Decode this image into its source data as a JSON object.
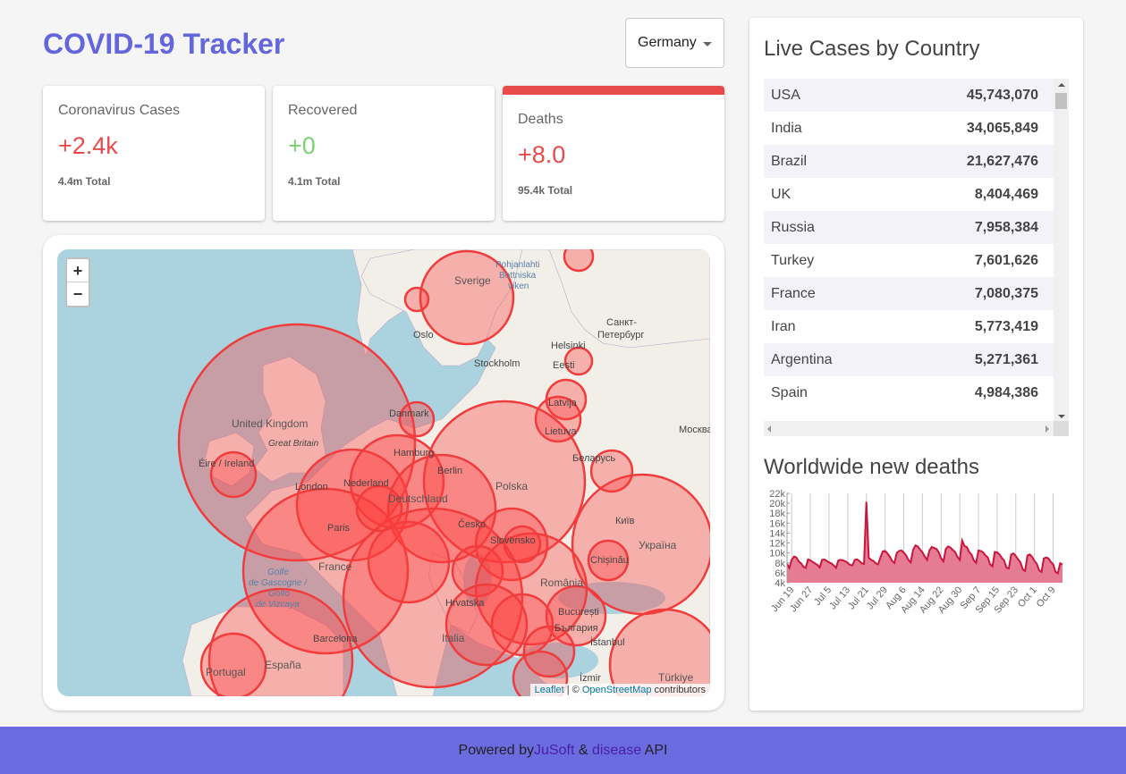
{
  "app": {
    "title": "COVID-19 Tracker"
  },
  "country_select": {
    "value": "Germany"
  },
  "cards": [
    {
      "label": "Coronavirus Cases",
      "value": "+2.4k",
      "total": "4.4m Total"
    },
    {
      "label": "Recovered",
      "value": "+0",
      "total": "4.1m Total"
    },
    {
      "label": "Deaths",
      "value": "+8.0",
      "total": "95.4k Total"
    }
  ],
  "map": {
    "zoom_in": "+",
    "zoom_out": "−",
    "attribution": {
      "leaflet": "Leaflet",
      "sep": " | © ",
      "osm": "OpenStreetMap",
      "suffix": " contributors"
    },
    "labels": {
      "sverige": "Sverige",
      "pohjanlahti": "Pohjanlahti",
      "bottniska": "Bottniska",
      "viken": "viken",
      "oslo": "Oslo",
      "stockholm": "Stockholm",
      "helsinki": "Helsinki",
      "spb1": "Санкт-",
      "spb2": "Петербург",
      "eesti": "Eesti",
      "latvija": "Latvija",
      "lietuva": "Lietuva",
      "moskva": "Москва",
      "danmark": "Danmark",
      "uk": "United Kingdom",
      "gb": "Great Britain",
      "eire": "Éire / Ireland",
      "hamburg": "Hamburg",
      "berlin": "Berlin",
      "nederland": "Nederland",
      "london": "London",
      "deutschland": "Deutschland",
      "polska": "Polska",
      "belarus": "Беларусь",
      "kyiv": "Київ",
      "ukraina": "Україна",
      "cesko": "Česko",
      "slovensko": "Slovensko",
      "paris": "Paris",
      "france": "France",
      "golfe1": "Golfe",
      "golfe2": "de Gascogne /",
      "golfe3": "Golfo",
      "golfe4": "de Vizcaya",
      "chisinau": "Chișinău",
      "romania": "România",
      "hrvatska": "Hrvatska",
      "bucuresti": "București",
      "balgaria": "България",
      "barcelona": "Barcelona",
      "italia": "Italia",
      "istanbul": "İstanbul",
      "portugal": "Portugal",
      "espana": "España",
      "izmir": "İzmir",
      "turkiye": "Türkiye"
    }
  },
  "live_cases": {
    "title": "Live Cases by Country",
    "rows": [
      {
        "country": "USA",
        "cases": "45,743,070"
      },
      {
        "country": "India",
        "cases": "34,065,849"
      },
      {
        "country": "Brazil",
        "cases": "21,627,476"
      },
      {
        "country": "UK",
        "cases": "8,404,469"
      },
      {
        "country": "Russia",
        "cases": "7,958,384"
      },
      {
        "country": "Turkey",
        "cases": "7,601,626"
      },
      {
        "country": "France",
        "cases": "7,080,375"
      },
      {
        "country": "Iran",
        "cases": "5,773,419"
      },
      {
        "country": "Argentina",
        "cases": "5,271,361"
      },
      {
        "country": "Spain",
        "cases": "4,984,386"
      }
    ]
  },
  "chart_data": {
    "type": "line",
    "title": "Worldwide new deaths",
    "xlabel": "",
    "ylabel": "",
    "ylim": [
      4000,
      22000
    ],
    "y_ticks": [
      "22k",
      "20k",
      "18k",
      "16k",
      "14k",
      "12k",
      "10k",
      "8k",
      "6k",
      "4k"
    ],
    "x_ticks": [
      "Jun 19",
      "Jun 27",
      "Jul 5",
      "Jul 13",
      "Jul 21",
      "Jul 29",
      "Aug 6",
      "Aug 14",
      "Aug 22",
      "Aug 30",
      "Sep 7",
      "Sep 15",
      "Sep 23",
      "Oct 1",
      "Oct 9"
    ],
    "fill_color": "#e57c93",
    "line_color": "#c8163c",
    "x": [
      "Jun 17",
      "Jun 18",
      "Jun 19",
      "Jun 20",
      "Jun 21",
      "Jun 22",
      "Jun 23",
      "Jun 24",
      "Jun 25",
      "Jun 26",
      "Jun 27",
      "Jun 28",
      "Jun 29",
      "Jun 30",
      "Jul 1",
      "Jul 2",
      "Jul 3",
      "Jul 4",
      "Jul 5",
      "Jul 6",
      "Jul 7",
      "Jul 8",
      "Jul 9",
      "Jul 10",
      "Jul 11",
      "Jul 12",
      "Jul 13",
      "Jul 14",
      "Jul 15",
      "Jul 16",
      "Jul 17",
      "Jul 18",
      "Jul 19",
      "Jul 20",
      "Jul 21",
      "Jul 22",
      "Jul 23",
      "Jul 24",
      "Jul 25",
      "Jul 26",
      "Jul 27",
      "Jul 28",
      "Jul 29",
      "Jul 30",
      "Jul 31",
      "Aug 1",
      "Aug 2",
      "Aug 3",
      "Aug 4",
      "Aug 5",
      "Aug 6",
      "Aug 7",
      "Aug 8",
      "Aug 9",
      "Aug 10",
      "Aug 11",
      "Aug 12",
      "Aug 13",
      "Aug 14",
      "Aug 15",
      "Aug 16",
      "Aug 17",
      "Aug 18",
      "Aug 19",
      "Aug 20",
      "Aug 21",
      "Aug 22",
      "Aug 23",
      "Aug 24",
      "Aug 25",
      "Aug 26",
      "Aug 27",
      "Aug 28",
      "Aug 29",
      "Aug 30",
      "Aug 31",
      "Sep 1",
      "Sep 2",
      "Sep 3",
      "Sep 4",
      "Sep 5",
      "Sep 6",
      "Sep 7",
      "Sep 8",
      "Sep 9",
      "Sep 10",
      "Sep 11",
      "Sep 12",
      "Sep 13",
      "Sep 14",
      "Sep 15",
      "Sep 16",
      "Sep 17",
      "Sep 18",
      "Sep 19",
      "Sep 20",
      "Sep 21",
      "Sep 22",
      "Sep 23",
      "Sep 24",
      "Sep 25",
      "Sep 26",
      "Sep 27",
      "Sep 28",
      "Sep 29",
      "Sep 30",
      "Oct 1",
      "Oct 2",
      "Oct 3",
      "Oct 4",
      "Oct 5",
      "Oct 6",
      "Oct 7",
      "Oct 8",
      "Oct 9",
      "Oct 10",
      "Oct 11",
      "Oct 12",
      "Oct 13"
    ],
    "values": [
      7800,
      7000,
      8600,
      9300,
      9100,
      8300,
      7900,
      7200,
      7000,
      8700,
      8500,
      8200,
      7900,
      7600,
      7100,
      8600,
      8700,
      8400,
      8100,
      7900,
      7500,
      7000,
      8500,
      8600,
      8500,
      8300,
      8000,
      7600,
      7500,
      8600,
      8700,
      8400,
      7900,
      7800,
      20300,
      9000,
      8600,
      8400,
      7900,
      7700,
      9100,
      10300,
      10400,
      9900,
      9300,
      8400,
      8000,
      10000,
      10400,
      10500,
      10100,
      9500,
      8600,
      8100,
      10600,
      11500,
      11300,
      10700,
      10100,
      9300,
      8600,
      10500,
      11200,
      11000,
      10800,
      10100,
      8900,
      8300,
      10800,
      11300,
      11100,
      10600,
      10200,
      9200,
      8600,
      12500,
      11400,
      11200,
      10200,
      9700,
      8500,
      8000,
      10500,
      10400,
      10100,
      9500,
      9100,
      7700,
      7300,
      10200,
      10100,
      9700,
      9000,
      8500,
      7000,
      6900,
      9700,
      9900,
      9400,
      8700,
      8100,
      6700,
      6400,
      9500,
      9700,
      9200,
      8400,
      7800,
      6500,
      6200,
      8900,
      9100,
      8900,
      8200,
      7700,
      6200,
      5900,
      7900,
      7700
    ]
  },
  "footer": {
    "prefix": "Powered by ",
    "jusoft": "JuSoft",
    "amp": " & ",
    "disease": "disease",
    "suffix": " API"
  }
}
